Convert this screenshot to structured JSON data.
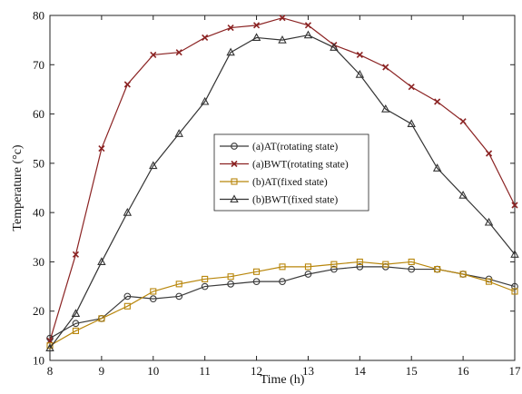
{
  "chart_data": {
    "type": "line",
    "xlabel": "Time (h)",
    "ylabel": "Temperature (°c)",
    "xlim": [
      8,
      17
    ],
    "ylim": [
      10,
      80
    ],
    "x_ticks": [
      8,
      9,
      10,
      11,
      12,
      13,
      14,
      15,
      16,
      17
    ],
    "y_ticks": [
      10,
      20,
      30,
      40,
      50,
      60,
      70,
      80
    ],
    "grid": false,
    "legend_position": "center",
    "series": [
      {
        "name": "(a)AT(rotating state)",
        "color": "#3a3a3a",
        "marker": "circle",
        "x": [
          8,
          8.5,
          9,
          9.5,
          10,
          10.5,
          11,
          11.5,
          12,
          12.5,
          13,
          13.5,
          14,
          14.5,
          15,
          15.5,
          16,
          16.5,
          17
        ],
        "y": [
          14.5,
          17.5,
          18.5,
          23,
          22.5,
          23,
          25,
          25.5,
          26,
          26,
          27.5,
          28.5,
          29,
          29,
          28.5,
          28.5,
          27.5,
          26.5,
          25
        ]
      },
      {
        "name": "(a)BWT(rotating state)",
        "color": "#8b2323",
        "marker": "x",
        "x": [
          8,
          8.5,
          9,
          9.5,
          10,
          10.5,
          11,
          11.5,
          12,
          12.5,
          13,
          13.5,
          14,
          14.5,
          15,
          15.5,
          16,
          16.5,
          17
        ],
        "y": [
          14,
          31.5,
          53,
          66,
          72,
          72.5,
          75.5,
          77.5,
          78,
          79.5,
          78,
          74,
          72,
          69.5,
          65.5,
          62.5,
          58.5,
          52,
          41.5
        ]
      },
      {
        "name": "(b)AT(fixed state)",
        "color": "#b8860b",
        "marker": "square",
        "x": [
          8,
          8.5,
          9,
          9.5,
          10,
          10.5,
          11,
          11.5,
          12,
          12.5,
          13,
          13.5,
          14,
          14.5,
          15,
          15.5,
          16,
          16.5,
          17
        ],
        "y": [
          13,
          16,
          18.5,
          21,
          24,
          25.5,
          26.5,
          27,
          28,
          29,
          29,
          29.5,
          30,
          29.5,
          30,
          28.5,
          27.5,
          26,
          24
        ]
      },
      {
        "name": "(b)BWT(fixed state)",
        "color": "#333333",
        "marker": "triangle",
        "x": [
          8,
          8.5,
          9,
          9.5,
          10,
          10.5,
          11,
          11.5,
          12,
          12.5,
          13,
          13.5,
          14,
          14.5,
          15,
          15.5,
          16,
          16.5,
          17
        ],
        "y": [
          12.5,
          19.5,
          30,
          40,
          49.5,
          56,
          62.5,
          72.5,
          75.5,
          75,
          76,
          73.5,
          68,
          61,
          58,
          49,
          43.5,
          38,
          31.5
        ]
      }
    ]
  }
}
